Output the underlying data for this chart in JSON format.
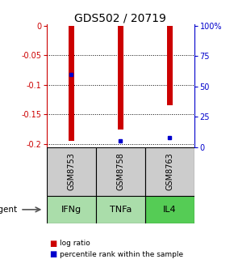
{
  "title": "GDS502 / 20719",
  "samples": [
    "GSM8753",
    "GSM8758",
    "GSM8763"
  ],
  "agents": [
    "IFNg",
    "TNFa",
    "IL4"
  ],
  "log_ratios": [
    -0.195,
    -0.175,
    -0.135
  ],
  "percentile_ranks": [
    0.6,
    0.05,
    0.08
  ],
  "ylim_log": [
    -0.205,
    0.002
  ],
  "yticks_log": [
    0,
    -0.05,
    -0.1,
    -0.15,
    -0.2
  ],
  "yticks_pct": [
    0,
    25,
    50,
    75,
    100
  ],
  "bar_color": "#cc0000",
  "pct_color": "#0000cc",
  "grid_color": "#000000",
  "sample_box_color": "#cccccc",
  "agent_box_colors": [
    "#aaddaa",
    "#aaddaa",
    "#55cc55"
  ],
  "title_color": "#000000",
  "left_axis_color": "#cc0000",
  "right_axis_color": "#0000cc",
  "bar_width": 0.12,
  "legend_bar_color": "#cc0000",
  "legend_pct_color": "#0000cc"
}
